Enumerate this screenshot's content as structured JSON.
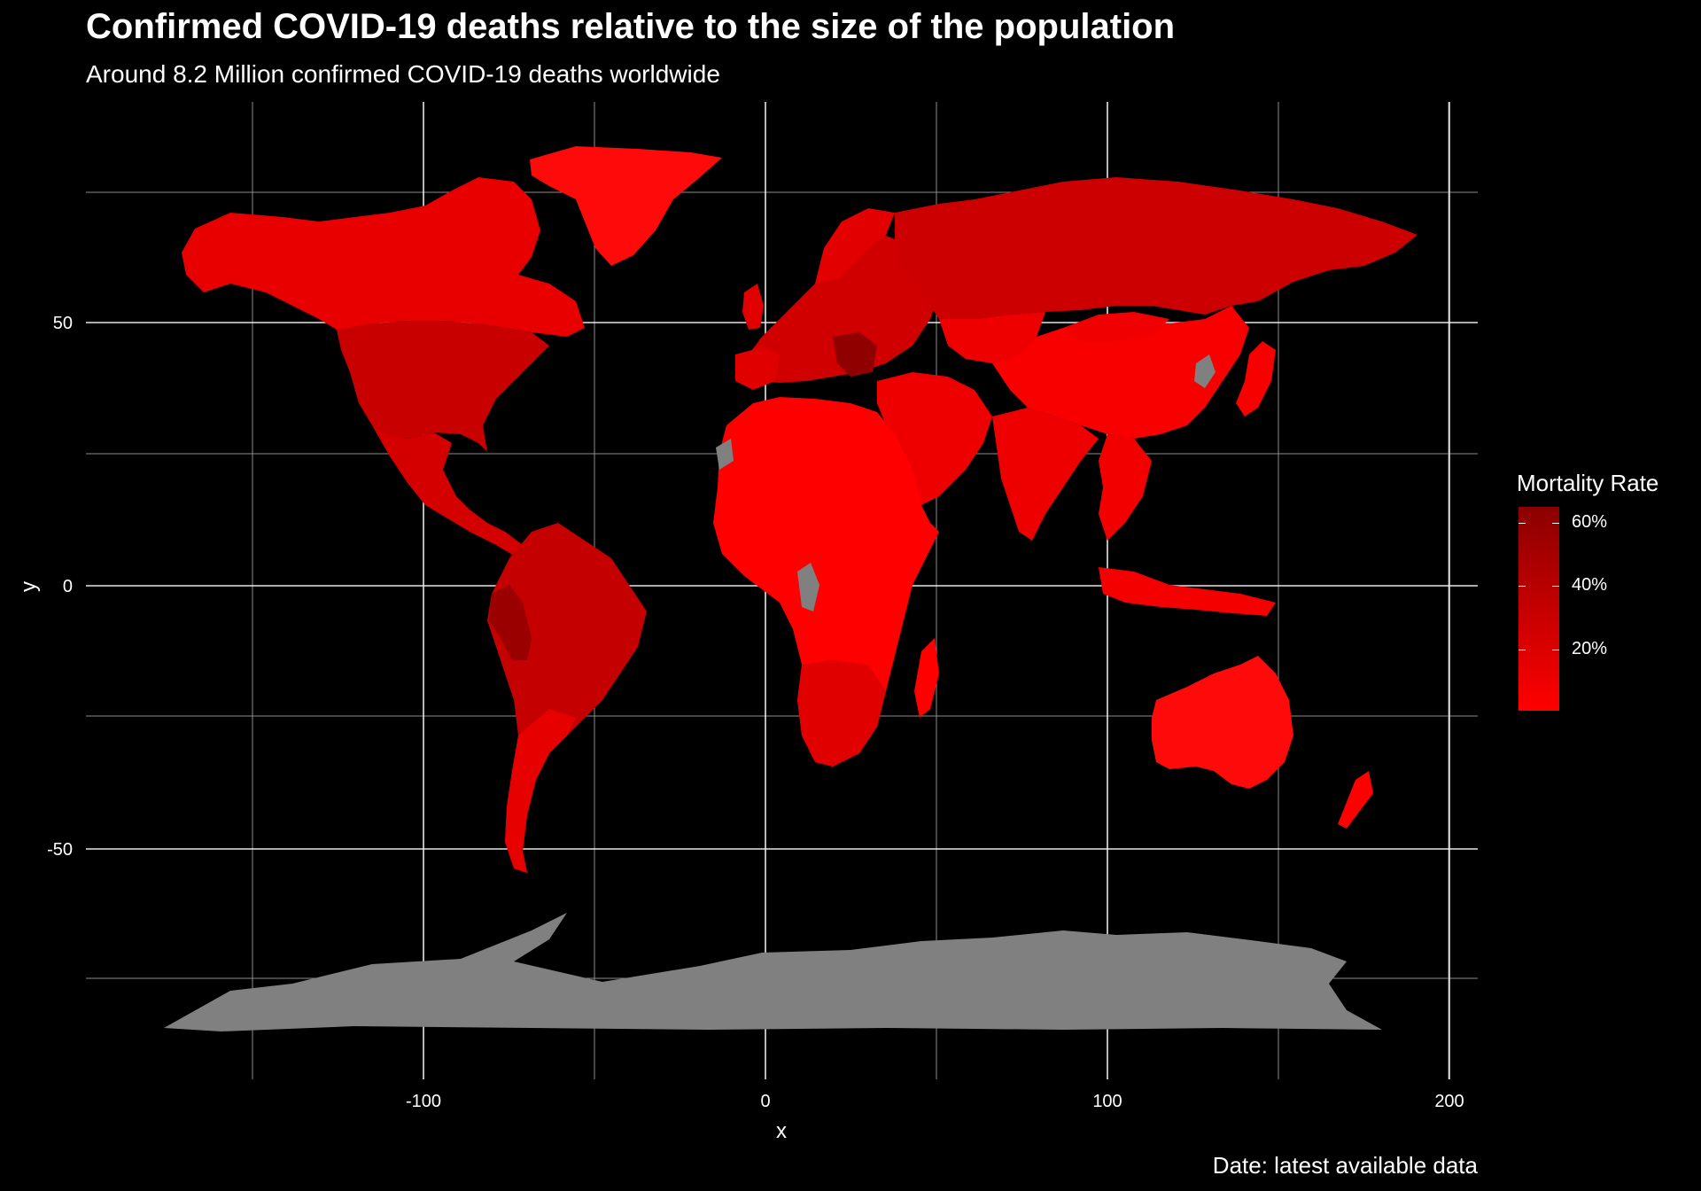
{
  "title": "Confirmed COVID-19 deaths relative to the size of the population",
  "subtitle": "Around 8.2 Million confirmed COVID-19 deaths worldwide",
  "caption": "Date: latest available data",
  "axes": {
    "x_label": "x",
    "y_label": "y",
    "x_ticks": [
      "-100",
      "0",
      "100",
      "200"
    ],
    "y_ticks": [
      "50",
      "0",
      "-50"
    ]
  },
  "legend": {
    "title": "Mortality Rate",
    "labels": [
      "60%",
      "40%",
      "20%"
    ],
    "low_color": "#ff0000",
    "high_color": "#8b0000",
    "missing_color": "#808080"
  },
  "colors": {
    "background": "#000000",
    "grid": "#ffffff"
  }
}
